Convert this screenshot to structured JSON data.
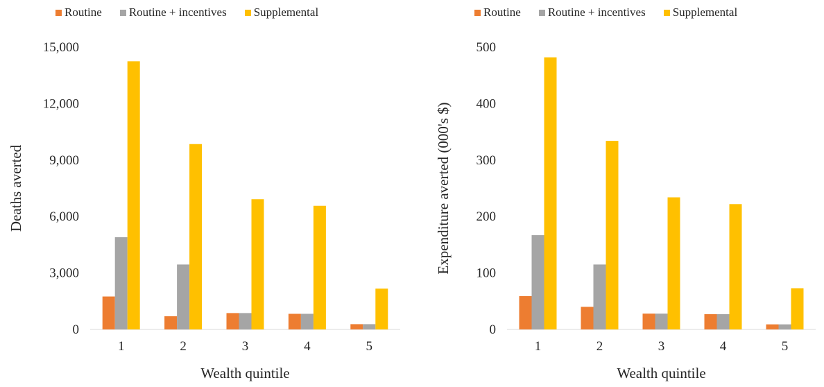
{
  "colors": {
    "routine": "#ED7D31",
    "routine_incentives": "#A5A5A5",
    "supplemental": "#FFC000",
    "axis": "#D9D9D9",
    "text": "#262626"
  },
  "chart_data": [
    {
      "type": "bar",
      "categories": [
        "1",
        "2",
        "3",
        "4",
        "5"
      ],
      "series": [
        {
          "name": "Routine",
          "values": [
            1750,
            700,
            870,
            830,
            280
          ]
        },
        {
          "name": "Routine + incentives",
          "values": [
            4900,
            3450,
            870,
            830,
            280
          ]
        },
        {
          "name": "Supplemental",
          "values": [
            14250,
            9850,
            6920,
            6570,
            2170
          ]
        }
      ],
      "xlabel": "Wealth quintile",
      "ylabel": "Deaths averted",
      "ylim": [
        0,
        15000
      ],
      "yticks": [
        "0",
        "3,000",
        "6,000",
        "9,000",
        "12,000",
        "15,000"
      ],
      "legend_position": "top"
    },
    {
      "type": "bar",
      "categories": [
        "1",
        "2",
        "3",
        "4",
        "5"
      ],
      "series": [
        {
          "name": "Routine",
          "values": [
            59,
            40,
            28,
            27,
            9
          ]
        },
        {
          "name": "Routine + incentives",
          "values": [
            167,
            115,
            28,
            27,
            9
          ]
        },
        {
          "name": "Supplemental",
          "values": [
            482,
            334,
            234,
            222,
            73
          ]
        }
      ],
      "xlabel": "Wealth quintile",
      "ylabel": "Expenditure averted (000's $)",
      "ylim": [
        0,
        500
      ],
      "yticks": [
        "0",
        "100",
        "200",
        "300",
        "400",
        "500"
      ],
      "legend_position": "top"
    }
  ]
}
